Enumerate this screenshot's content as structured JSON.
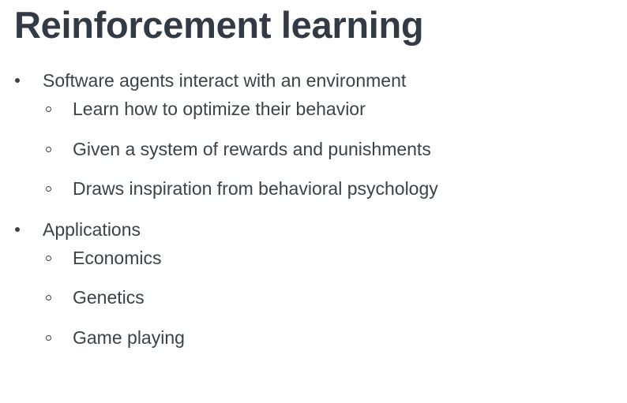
{
  "slide": {
    "title": "Reinforcement learning",
    "bullets": [
      {
        "text": "Software agents interact with an environment",
        "subitems": [
          "Learn how to optimize their behavior",
          "Given a system of rewards and punishments",
          "Draws inspiration from behavioral psychology"
        ]
      },
      {
        "text": "Applications",
        "subitems": [
          "Economics",
          "Genetics",
          "Game playing"
        ]
      }
    ]
  }
}
